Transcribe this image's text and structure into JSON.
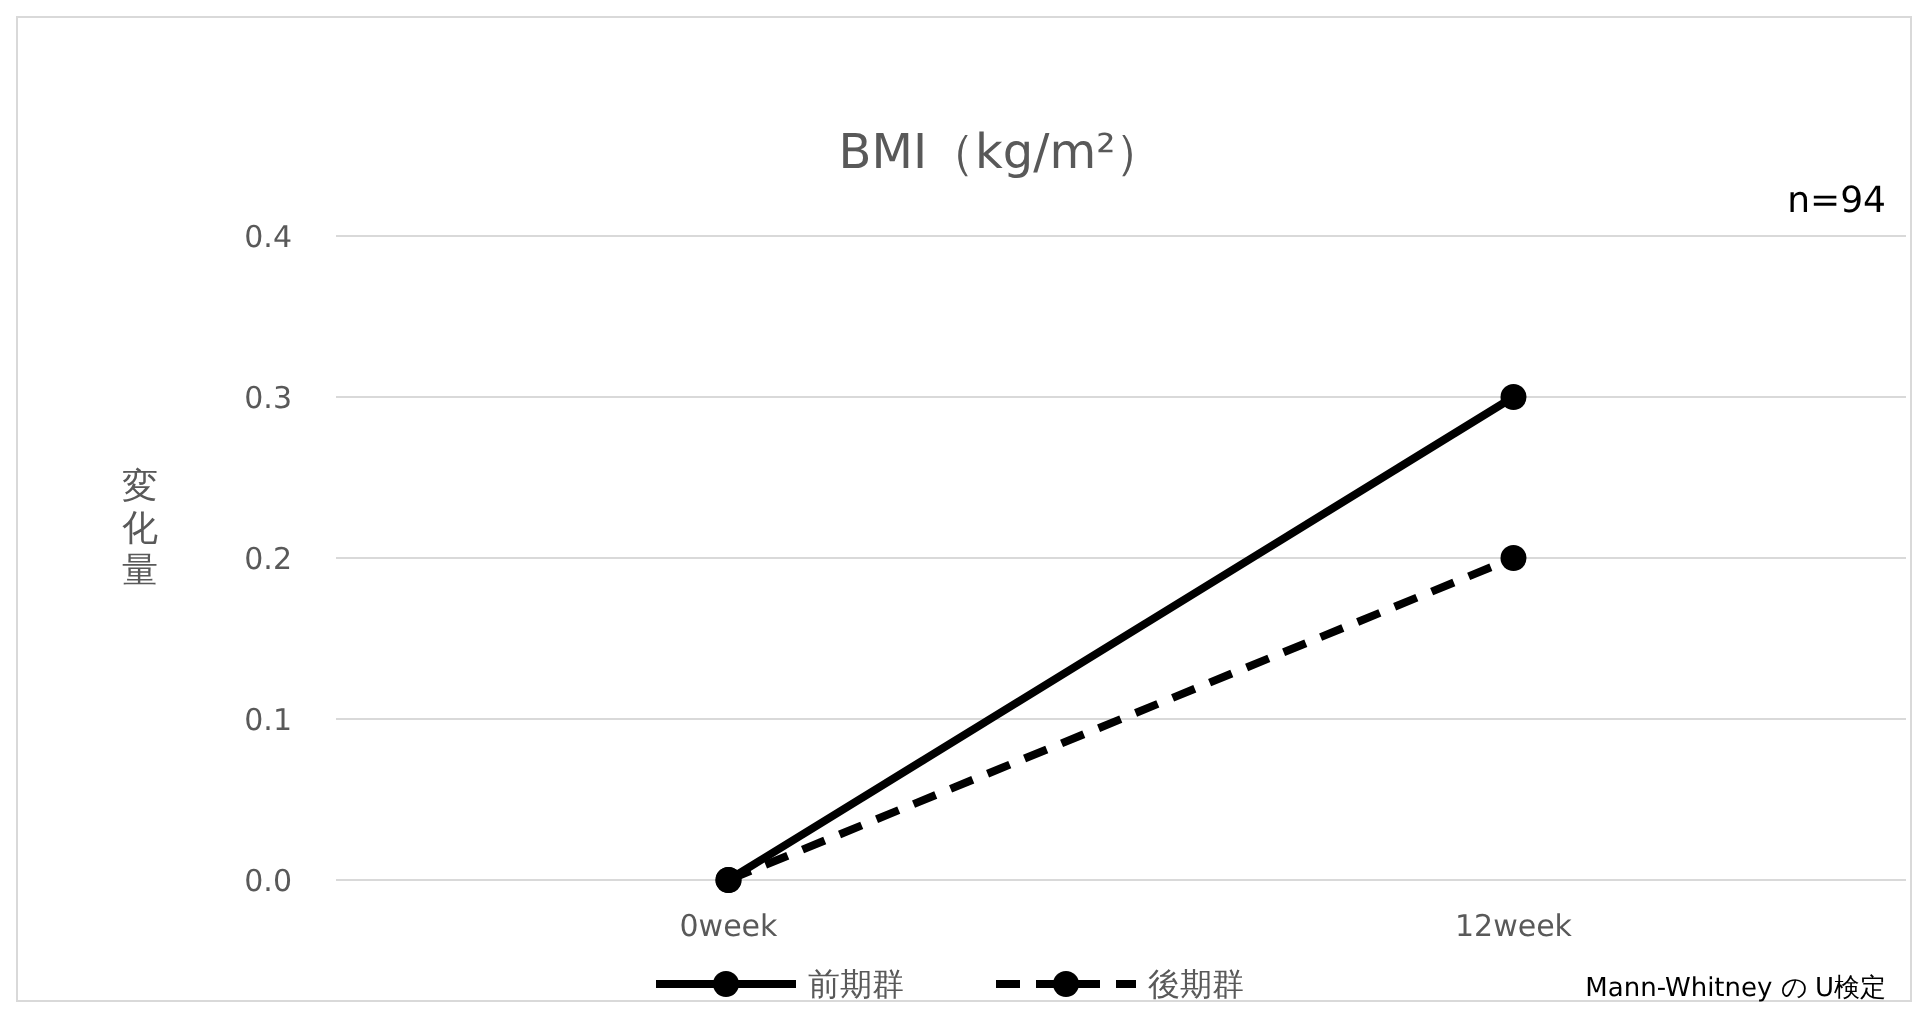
{
  "chart_data": {
    "type": "line",
    "title": "BMI（kg/m²）",
    "ylabel": "変化量",
    "categories": [
      "0week",
      "12week"
    ],
    "series": [
      {
        "name": "前期群",
        "color": "#000000",
        "values": [
          0,
          0.3
        ],
        "line_style": "solid"
      },
      {
        "name": "後期群",
        "color": "#000000",
        "values": [
          0,
          0.2
        ],
        "line_style": "dashed"
      }
    ],
    "ylim": [
      0,
      0.4
    ],
    "yticks": [
      {
        "value": 0,
        "label": "0.0"
      },
      {
        "value": 0.1,
        "label": "0.1"
      },
      {
        "value": 0.2,
        "label": "0.2"
      },
      {
        "value": 0.3,
        "label": "0.3"
      },
      {
        "value": 0.4,
        "label": "0.4"
      }
    ],
    "grid": "y",
    "legend": "bottom",
    "marker": "circle",
    "annotations": [
      "n=94",
      "Mann-Whitney の U検定"
    ]
  }
}
